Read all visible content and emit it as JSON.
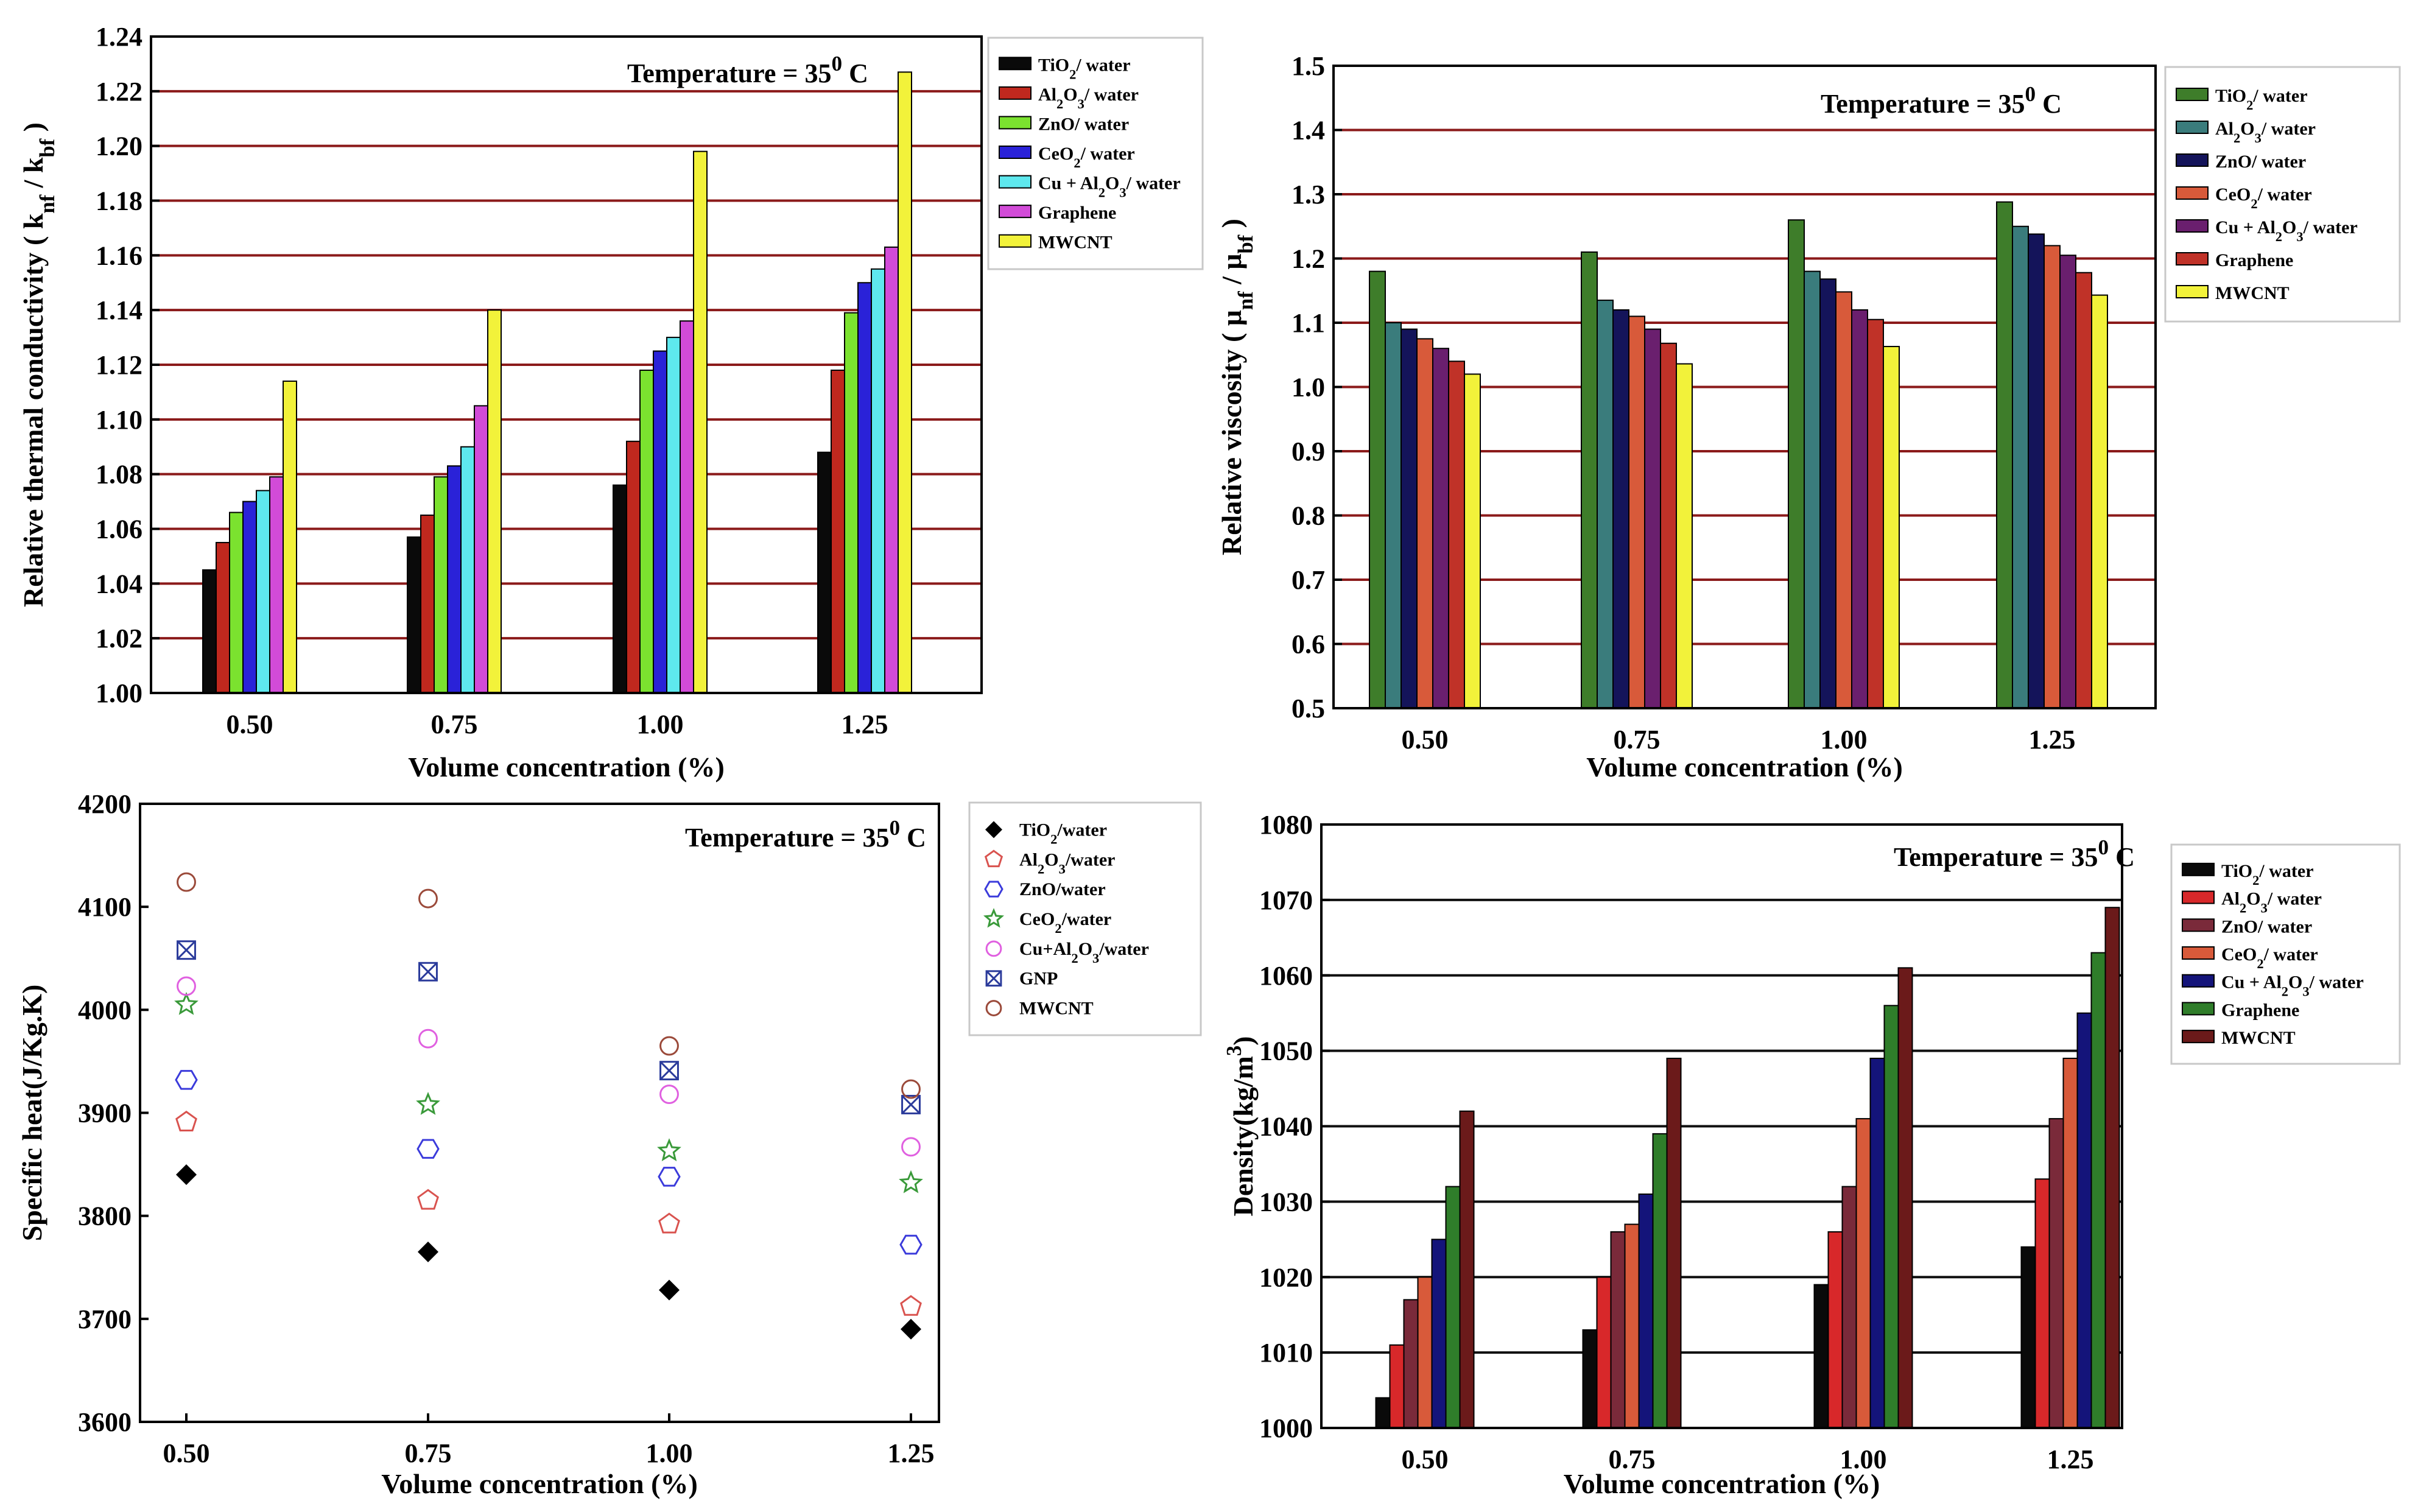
{
  "chart_data": [
    {
      "id": "tc",
      "type": "bar",
      "title": "Temperature = 35",
      "title_sup": "0",
      "title_unit": " C",
      "xlabel": "Volume concentration (%)",
      "ylabel": "Relative thermal conductivity ( k",
      "ylabel_sub1": "nf",
      "ylabel_mid": " / k",
      "ylabel_sub2": "bf",
      "ylabel_end": " )",
      "categories": [
        "0.50",
        "0.75",
        "1.00",
        "1.25"
      ],
      "ylim": [
        1.0,
        1.24
      ],
      "yticks": [
        "1.00",
        "1.02",
        "1.04",
        "1.06",
        "1.08",
        "1.10",
        "1.12",
        "1.14",
        "1.16",
        "1.18",
        "1.20",
        "1.22",
        "1.24"
      ],
      "grid": "horizontal",
      "legend_position": "top-right (outside)",
      "series": [
        {
          "name": "TiO2/ water",
          "color": "#0a0a0a",
          "values": [
            1.045,
            1.057,
            1.076,
            1.088
          ]
        },
        {
          "name": "Al2O3/ water",
          "color": "#c0281e",
          "values": [
            1.055,
            1.065,
            1.092,
            1.118
          ]
        },
        {
          "name": "ZnO/ water",
          "color": "#7be22f",
          "values": [
            1.066,
            1.079,
            1.118,
            1.139
          ]
        },
        {
          "name": "CeO2/ water",
          "color": "#2a22d8",
          "values": [
            1.07,
            1.083,
            1.125,
            1.15
          ]
        },
        {
          "name": "Cu + Al2O3/ water",
          "color": "#5ee8ee",
          "values": [
            1.074,
            1.09,
            1.13,
            1.155
          ]
        },
        {
          "name": "Graphene",
          "color": "#d24bd8",
          "values": [
            1.079,
            1.105,
            1.136,
            1.163
          ]
        },
        {
          "name": "MWCNT",
          "color": "#f2f23a",
          "values": [
            1.114,
            1.14,
            1.198,
            1.227
          ]
        }
      ]
    },
    {
      "id": "visc",
      "type": "bar",
      "title": "Temperature = 35",
      "title_sup": "0",
      "title_unit": " C",
      "xlabel": "Volume concentration (%)",
      "ylabel": "Relative viscosity ( μ",
      "ylabel_sub1": "nf",
      "ylabel_mid": " / μ",
      "ylabel_sub2": "bf",
      "ylabel_end": " )",
      "categories": [
        "0.50",
        "0.75",
        "1.00",
        "1.25"
      ],
      "ylim": [
        0.5,
        1.5
      ],
      "yticks": [
        "0.5",
        "0.6",
        "0.7",
        "0.8",
        "0.9",
        "1.0",
        "1.1",
        "1.2",
        "1.3",
        "1.4",
        "1.5"
      ],
      "grid": "horizontal",
      "legend_position": "top-right (outside)",
      "series": [
        {
          "name": "TiO2/ water",
          "color": "#3e7d2a",
          "values": [
            1.18,
            1.21,
            1.26,
            1.288
          ]
        },
        {
          "name": "Al2O3/ water",
          "color": "#3a7c7c",
          "values": [
            1.1,
            1.135,
            1.18,
            1.25
          ]
        },
        {
          "name": "ZnO/ water",
          "color": "#14145a",
          "values": [
            1.09,
            1.12,
            1.168,
            1.238
          ]
        },
        {
          "name": "CeO2/ water",
          "color": "#d85a3a",
          "values": [
            1.075,
            1.11,
            1.148,
            1.22
          ]
        },
        {
          "name": "Cu + Al2O3/ water",
          "color": "#6a1f6e",
          "values": [
            1.06,
            1.09,
            1.12,
            1.205
          ]
        },
        {
          "name": "Graphene",
          "color": "#c03228",
          "values": [
            1.04,
            1.068,
            1.105,
            1.178
          ]
        },
        {
          "name": "MWCNT",
          "color": "#f2f23a",
          "values": [
            1.02,
            1.036,
            1.063,
            1.143
          ]
        }
      ]
    },
    {
      "id": "cp",
      "type": "scatter",
      "title": "Temperature = 35",
      "title_sup": "0",
      "title_unit": " C",
      "xlabel": "Volume concentration (%)",
      "ylabel": "Specific heat(J/Kg.K)",
      "categories": [
        "0.50",
        "0.75",
        "1.00",
        "1.25"
      ],
      "ylim": [
        3600,
        4200
      ],
      "yticks": [
        "3600",
        "3700",
        "3800",
        "3900",
        "4000",
        "4100",
        "4200"
      ],
      "grid": "none",
      "legend_position": "top-right (outside)",
      "series": [
        {
          "name": "TiO2/water",
          "marker": "filled-diamond",
          "color": "#000000",
          "values": [
            3840,
            3765,
            3728,
            3690
          ]
        },
        {
          "name": "Al2O3/water",
          "marker": "pentagon",
          "color": "#d9534f",
          "values": [
            3891,
            3815,
            3792,
            3712
          ]
        },
        {
          "name": "ZnO/water",
          "marker": "hexagon",
          "color": "#3b3bdb",
          "values": [
            3932,
            3865,
            3838,
            3772
          ]
        },
        {
          "name": "CeO2/water",
          "marker": "star",
          "color": "#3a9a3a",
          "values": [
            4005,
            3908,
            3863,
            3832
          ]
        },
        {
          "name": "Cu+Al2O3/water",
          "marker": "circle",
          "color": "#e060e0",
          "values": [
            4023,
            3972,
            3918,
            3867
          ]
        },
        {
          "name": "GNP",
          "marker": "crossed-square",
          "color": "#2b3b9b",
          "values": [
            4058,
            4037,
            3941,
            3908
          ]
        },
        {
          "name": "MWCNT",
          "marker": "circle",
          "color": "#9b4a3a",
          "values": [
            4124,
            4108,
            3965,
            3923
          ]
        }
      ]
    },
    {
      "id": "dens",
      "type": "bar",
      "title": "Temperature = 35",
      "title_sup": "0",
      "title_unit": " C",
      "xlabel": "Volume concentration (%)",
      "ylabel": "Density(kg/m",
      "ylabel_sup": "3",
      "ylabel_end": ")",
      "categories": [
        "0.50",
        "0.75",
        "1.00",
        "1.25"
      ],
      "ylim": [
        1000,
        1080
      ],
      "yticks": [
        "1000",
        "1010",
        "1020",
        "1030",
        "1040",
        "1050",
        "1060",
        "1070",
        "1080"
      ],
      "grid": "horizontal",
      "legend_position": "top-right (inside)",
      "series": [
        {
          "name": "TiO2/ water",
          "color": "#0a0a0a",
          "values": [
            1004,
            1013,
            1019,
            1024
          ]
        },
        {
          "name": "Al2O3/ water",
          "color": "#d8282a",
          "values": [
            1011,
            1020,
            1026,
            1033
          ]
        },
        {
          "name": "ZnO/ water",
          "color": "#7a2a3a",
          "values": [
            1017,
            1026,
            1032,
            1041
          ]
        },
        {
          "name": "CeO2/ water",
          "color": "#d85a3a",
          "values": [
            1020,
            1027,
            1041,
            1049
          ]
        },
        {
          "name": "Cu + Al2O3/ water",
          "color": "#14147a",
          "values": [
            1025,
            1031,
            1049,
            1055
          ]
        },
        {
          "name": "Graphene",
          "color": "#2f7d2a",
          "values": [
            1032,
            1039,
            1056,
            1063
          ]
        },
        {
          "name": "MWCNT",
          "color": "#6b1a1a",
          "values": [
            1042,
            1049,
            1061,
            1069
          ]
        }
      ]
    }
  ]
}
